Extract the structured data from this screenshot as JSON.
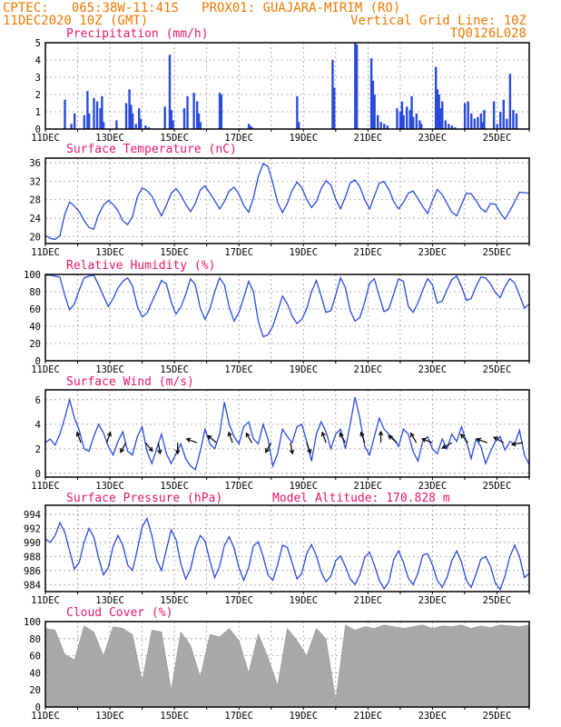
{
  "header": {
    "line1_left": "CPTEC:   065:38W-11:41S   PROX01: GUAJARA-MIRIM (RO)",
    "line2_left": "11DEC2020 10Z (GMT)",
    "line2_right": "Vertical Grid Line: 10Z",
    "line3_right": "TQ0126L028"
  },
  "colors": {
    "header": "#f07800",
    "titles": "#e8186c",
    "series": "#2a4bdc",
    "cloud": "#a8a8a8",
    "wind_arrows": "#000000"
  },
  "x_axis": {
    "tick_labels": [
      "11DEC",
      "13DEC",
      "15DEC",
      "17DEC",
      "19DEC",
      "21DEC",
      "23DEC",
      "25DEC"
    ],
    "day_range": [
      0,
      15
    ]
  },
  "chart_data": [
    {
      "type": "bar",
      "title": "Precipitation (mm/h)",
      "ylim": [
        0,
        5
      ],
      "yticks": [
        "0",
        "1",
        "2",
        "3",
        "4",
        "5"
      ],
      "grid": true,
      "x": [
        0.6,
        0.8,
        0.9,
        1.2,
        1.3,
        1.35,
        1.5,
        1.6,
        1.7,
        1.75,
        1.8,
        2.2,
        2.5,
        2.6,
        2.65,
        2.7,
        2.8,
        2.9,
        2.95,
        3.1,
        3.2,
        3.7,
        3.85,
        3.9,
        3.95,
        4.3,
        4.4,
        4.6,
        4.7,
        4.75,
        4.8,
        5.4,
        5.45,
        6.3,
        6.35,
        6.4,
        7.8,
        7.85,
        8.9,
        8.95,
        9.6,
        9.65,
        10.1,
        10.15,
        10.2,
        10.3,
        10.4,
        10.5,
        10.6,
        10.9,
        11.0,
        11.05,
        11.1,
        11.2,
        11.3,
        11.35,
        11.4,
        11.5,
        11.6,
        11.65,
        12.1,
        12.15,
        12.2,
        12.25,
        12.3,
        12.4,
        12.5,
        12.6,
        12.7,
        13.0,
        13.1,
        13.2,
        13.3,
        13.4,
        13.5,
        13.55,
        13.6,
        13.9,
        14.0,
        14.1,
        14.2,
        14.3,
        14.4,
        14.5,
        14.6
      ],
      "values": [
        1.7,
        0.3,
        0.9,
        0.8,
        2.2,
        0.9,
        1.8,
        1.6,
        1.2,
        1.9,
        0.4,
        0.5,
        1.5,
        2.3,
        1.4,
        0.9,
        0.3,
        1.2,
        0.6,
        0.2,
        0.1,
        1.3,
        4.3,
        1.1,
        0.5,
        1.2,
        1.9,
        2.1,
        1.6,
        0.9,
        0.4,
        2.1,
        2.0,
        0.3,
        0.2,
        0.1,
        1.9,
        0.4,
        4.0,
        2.4,
        5.0,
        4.9,
        4.1,
        2.8,
        2.0,
        0.8,
        0.4,
        0.3,
        0.2,
        1.2,
        1.0,
        1.6,
        0.8,
        1.3,
        1.1,
        1.9,
        0.7,
        0.9,
        0.5,
        0.3,
        3.6,
        2.3,
        2.0,
        1.2,
        1.6,
        0.5,
        0.3,
        0.2,
        0.1,
        1.5,
        1.6,
        0.9,
        0.6,
        0.7,
        0.9,
        0.4,
        1.1,
        1.6,
        0.3,
        1.0,
        1.7,
        0.6,
        3.2,
        1.1,
        0.9
      ]
    },
    {
      "type": "line",
      "title": "Surface Temperature (nC)",
      "ylim": [
        18.5,
        37
      ],
      "yticks": [
        "20",
        "24",
        "28",
        "32",
        "36"
      ],
      "grid": true,
      "x": [
        0,
        0.15,
        0.3,
        0.45,
        0.6,
        0.75,
        0.9,
        1.05,
        1.2,
        1.35,
        1.5,
        1.65,
        1.8,
        1.95,
        2.1,
        2.25,
        2.4,
        2.55,
        2.7,
        2.85,
        3.0,
        3.15,
        3.3,
        3.45,
        3.6,
        3.75,
        3.9,
        4.05,
        4.2,
        4.35,
        4.5,
        4.65,
        4.8,
        4.95,
        5.1,
        5.25,
        5.4,
        5.55,
        5.7,
        5.85,
        6.0,
        6.15,
        6.3,
        6.45,
        6.6,
        6.75,
        6.9,
        7.05,
        7.2,
        7.35,
        7.5,
        7.65,
        7.8,
        7.95,
        8.1,
        8.25,
        8.4,
        8.55,
        8.7,
        8.85,
        9.0,
        9.15,
        9.3,
        9.45,
        9.6,
        9.75,
        9.9,
        10.05,
        10.2,
        10.35,
        10.5,
        10.65,
        10.8,
        10.95,
        11.1,
        11.25,
        11.4,
        11.55,
        11.7,
        11.85,
        12.0,
        12.15,
        12.3,
        12.45,
        12.6,
        12.75,
        12.9,
        13.05,
        13.2,
        13.35,
        13.5,
        13.65,
        13.8,
        13.95,
        14.1,
        14.25,
        14.4,
        14.55,
        14.7,
        14.85,
        15.0
      ],
      "values": [
        20.3,
        19.6,
        19.4,
        20.2,
        24.8,
        27.5,
        26.6,
        25.4,
        23.5,
        22.0,
        21.6,
        24.8,
        26.8,
        27.8,
        27.0,
        25.6,
        23.4,
        22.6,
        24.3,
        28.6,
        30.5,
        30.0,
        28.8,
        26.5,
        24.5,
        26.8,
        29.4,
        30.4,
        29.0,
        27.0,
        25.4,
        27.2,
        30.1,
        31.0,
        29.4,
        27.8,
        26.0,
        27.6,
        29.9,
        30.7,
        29.2,
        26.7,
        25.3,
        28.4,
        33.0,
        35.8,
        35.2,
        31.6,
        27.4,
        25.2,
        27.2,
        30.0,
        31.8,
        30.6,
        28.1,
        26.3,
        27.6,
        30.4,
        32.1,
        31.2,
        28.1,
        26.0,
        28.6,
        31.6,
        32.3,
        30.8,
        28.0,
        26.0,
        28.8,
        31.6,
        31.9,
        30.2,
        27.6,
        26.0,
        27.4,
        29.4,
        29.9,
        28.2,
        26.5,
        25.0,
        27.8,
        30.2,
        29.1,
        27.2,
        25.3,
        24.5,
        26.9,
        29.4,
        29.3,
        27.8,
        26.1,
        25.3,
        27.2,
        27.0,
        25.2,
        23.8,
        25.6,
        27.6,
        29.6,
        29.5,
        29.4
      ]
    },
    {
      "type": "line",
      "title": "Relative Humidity (%)",
      "ylim": [
        0,
        100
      ],
      "yticks": [
        "0",
        "20",
        "40",
        "60",
        "80",
        "100"
      ],
      "grid": true,
      "x": [
        0,
        0.15,
        0.3,
        0.45,
        0.6,
        0.75,
        0.9,
        1.05,
        1.2,
        1.35,
        1.5,
        1.65,
        1.8,
        1.95,
        2.1,
        2.25,
        2.4,
        2.55,
        2.7,
        2.85,
        3.0,
        3.15,
        3.3,
        3.45,
        3.6,
        3.75,
        3.9,
        4.05,
        4.2,
        4.35,
        4.5,
        4.65,
        4.8,
        4.95,
        5.1,
        5.25,
        5.4,
        5.55,
        5.7,
        5.85,
        6.0,
        6.15,
        6.3,
        6.45,
        6.6,
        6.75,
        6.9,
        7.05,
        7.2,
        7.35,
        7.5,
        7.65,
        7.8,
        7.95,
        8.1,
        8.25,
        8.4,
        8.55,
        8.7,
        8.85,
        9.0,
        9.15,
        9.3,
        9.45,
        9.6,
        9.75,
        9.9,
        10.05,
        10.2,
        10.35,
        10.5,
        10.65,
        10.8,
        10.95,
        11.1,
        11.25,
        11.4,
        11.55,
        11.7,
        11.85,
        12.0,
        12.15,
        12.3,
        12.45,
        12.6,
        12.75,
        12.9,
        13.05,
        13.2,
        13.35,
        13.5,
        13.65,
        13.8,
        13.95,
        14.1,
        14.25,
        14.4,
        14.55,
        14.7,
        14.85,
        15.0
      ],
      "values": [
        99,
        99,
        98,
        97,
        76,
        59,
        66,
        82,
        96,
        98,
        99,
        88,
        75,
        63,
        72,
        84,
        92,
        96,
        87,
        63,
        51,
        55,
        68,
        80,
        93,
        89,
        68,
        54,
        62,
        77,
        95,
        88,
        61,
        48,
        60,
        80,
        96,
        88,
        62,
        46,
        56,
        73,
        92,
        80,
        46,
        28,
        30,
        40,
        57,
        75,
        66,
        52,
        43,
        48,
        60,
        80,
        93,
        75,
        56,
        58,
        76,
        96,
        85,
        58,
        46,
        50,
        68,
        90,
        95,
        75,
        57,
        60,
        78,
        95,
        92,
        63,
        56,
        67,
        82,
        95,
        88,
        67,
        69,
        82,
        94,
        98,
        86,
        70,
        72,
        86,
        97,
        96,
        89,
        79,
        73,
        86,
        95,
        90,
        76,
        61,
        66
      ]
    },
    {
      "type": "line",
      "title": "Surface Wind (m/s)",
      "ylim": [
        -0.3,
        6.8
      ],
      "yticks": [
        "0",
        "2",
        "4",
        "6"
      ],
      "grid": true,
      "x": [
        0,
        0.15,
        0.3,
        0.45,
        0.6,
        0.75,
        0.9,
        1.05,
        1.2,
        1.35,
        1.5,
        1.65,
        1.8,
        1.95,
        2.1,
        2.25,
        2.4,
        2.55,
        2.7,
        2.85,
        3.0,
        3.15,
        3.3,
        3.45,
        3.6,
        3.75,
        3.9,
        4.05,
        4.2,
        4.35,
        4.5,
        4.65,
        4.8,
        4.95,
        5.1,
        5.25,
        5.4,
        5.55,
        5.7,
        5.85,
        6.0,
        6.15,
        6.3,
        6.45,
        6.6,
        6.75,
        6.9,
        7.05,
        7.2,
        7.35,
        7.5,
        7.65,
        7.8,
        7.95,
        8.1,
        8.25,
        8.4,
        8.55,
        8.7,
        8.85,
        9.0,
        9.15,
        9.3,
        9.45,
        9.6,
        9.75,
        9.9,
        10.05,
        10.2,
        10.35,
        10.5,
        10.65,
        10.8,
        10.95,
        11.1,
        11.25,
        11.4,
        11.55,
        11.7,
        11.85,
        12.0,
        12.15,
        12.3,
        12.45,
        12.6,
        12.75,
        12.9,
        13.05,
        13.2,
        13.35,
        13.5,
        13.65,
        13.8,
        13.95,
        14.1,
        14.25,
        14.4,
        14.55,
        14.7,
        14.85,
        15.0
      ],
      "values": [
        2.5,
        2.8,
        2.3,
        3.2,
        4.5,
        6.0,
        4.5,
        3.5,
        2.0,
        1.8,
        3.0,
        4.0,
        3.3,
        2.2,
        1.5,
        2.6,
        3.4,
        1.8,
        1.5,
        3.0,
        3.8,
        1.8,
        0.8,
        2.0,
        3.2,
        1.6,
        0.8,
        1.6,
        2.4,
        1.2,
        0.6,
        0.3,
        1.8,
        3.6,
        2.4,
        2.0,
        3.2,
        5.8,
        4.0,
        3.0,
        2.4,
        3.8,
        4.2,
        2.8,
        2.4,
        4.0,
        2.8,
        0.6,
        1.6,
        3.6,
        3.0,
        2.5,
        3.8,
        4.0,
        2.6,
        1.0,
        3.2,
        4.2,
        3.4,
        2.0,
        3.2,
        3.6,
        2.0,
        4.0,
        6.2,
        4.5,
        2.2,
        1.5,
        3.0,
        4.5,
        3.6,
        3.2,
        2.8,
        2.2,
        3.6,
        3.2,
        1.8,
        1.0,
        2.6,
        3.0,
        2.0,
        1.6,
        2.8,
        2.0,
        3.2,
        2.6,
        3.8,
        2.6,
        1.2,
        2.8,
        2.2,
        0.8,
        1.8,
        2.6,
        3.0,
        1.9,
        2.6,
        2.4,
        3.5,
        1.5,
        0.7
      ]
    },
    {
      "type": "line",
      "title": "Surface Pressure (hPa)",
      "subtitle": "Model Altitude: 170.828 m",
      "ylim": [
        983,
        995.3
      ],
      "yticks": [
        "984",
        "986",
        "988",
        "990",
        "992",
        "994"
      ],
      "grid": true,
      "x": [
        0,
        0.15,
        0.3,
        0.45,
        0.6,
        0.75,
        0.9,
        1.05,
        1.2,
        1.35,
        1.5,
        1.65,
        1.8,
        1.95,
        2.1,
        2.25,
        2.4,
        2.55,
        2.7,
        2.85,
        3.0,
        3.15,
        3.3,
        3.45,
        3.6,
        3.75,
        3.9,
        4.05,
        4.2,
        4.35,
        4.5,
        4.65,
        4.8,
        4.95,
        5.1,
        5.25,
        5.4,
        5.55,
        5.7,
        5.85,
        6.0,
        6.15,
        6.3,
        6.45,
        6.6,
        6.75,
        6.9,
        7.05,
        7.2,
        7.35,
        7.5,
        7.65,
        7.8,
        7.95,
        8.1,
        8.25,
        8.4,
        8.55,
        8.7,
        8.85,
        9.0,
        9.15,
        9.3,
        9.45,
        9.6,
        9.75,
        9.9,
        10.05,
        10.2,
        10.35,
        10.5,
        10.65,
        10.8,
        10.95,
        11.1,
        11.25,
        11.4,
        11.55,
        11.7,
        11.85,
        12.0,
        12.15,
        12.3,
        12.45,
        12.6,
        12.75,
        12.9,
        13.05,
        13.2,
        13.35,
        13.5,
        13.65,
        13.8,
        13.95,
        14.1,
        14.25,
        14.4,
        14.55,
        14.7,
        14.85,
        15.0
      ],
      "values": [
        990.5,
        990.0,
        991.0,
        992.8,
        991.5,
        988.8,
        986.2,
        987.2,
        990.0,
        992.0,
        990.8,
        987.8,
        985.4,
        986.4,
        989.4,
        991.0,
        989.6,
        986.8,
        986.0,
        989.0,
        992.2,
        993.4,
        991.0,
        987.5,
        986.0,
        989.0,
        991.8,
        990.4,
        987.0,
        984.8,
        986.2,
        989.2,
        991.0,
        990.2,
        987.4,
        985.0,
        986.6,
        989.6,
        990.8,
        989.2,
        986.4,
        984.6,
        986.4,
        989.5,
        990.1,
        988.0,
        985.4,
        984.6,
        986.8,
        989.6,
        989.3,
        987.1,
        984.8,
        985.6,
        988.4,
        989.7,
        988.1,
        985.8,
        984.4,
        985.2,
        987.4,
        988.1,
        986.6,
        984.8,
        984.0,
        985.4,
        987.9,
        988.6,
        986.8,
        984.6,
        983.4,
        984.4,
        987.6,
        988.8,
        987.2,
        984.9,
        984.0,
        985.6,
        988.2,
        988.4,
        986.8,
        984.6,
        983.6,
        985.0,
        987.4,
        988.8,
        987.2,
        984.6,
        983.6,
        985.5,
        987.6,
        988.0,
        986.6,
        984.2,
        983.3,
        985.2,
        988.0,
        989.6,
        988.0,
        985.0,
        985.6
      ]
    },
    {
      "type": "area",
      "title": "Cloud Cover (%)",
      "ylim": [
        0,
        100
      ],
      "yticks": [
        "0",
        "20",
        "40",
        "60",
        "80",
        "100"
      ],
      "grid": true,
      "x": [
        0,
        0.3,
        0.6,
        0.9,
        1.2,
        1.5,
        1.8,
        2.1,
        2.4,
        2.7,
        3.0,
        3.3,
        3.6,
        3.9,
        4.2,
        4.5,
        4.8,
        5.1,
        5.4,
        5.7,
        6.0,
        6.3,
        6.6,
        6.9,
        7.2,
        7.5,
        7.8,
        8.1,
        8.4,
        8.7,
        9.0,
        9.3,
        9.6,
        9.9,
        10.2,
        10.5,
        10.8,
        11.1,
        11.4,
        11.7,
        12.0,
        12.3,
        12.6,
        12.9,
        13.2,
        13.5,
        13.8,
        14.1,
        14.4,
        14.7,
        15.0
      ],
      "values": [
        92,
        90,
        62,
        55,
        95,
        88,
        60,
        94,
        92,
        85,
        30,
        90,
        88,
        20,
        88,
        72,
        35,
        85,
        82,
        92,
        78,
        40,
        86,
        58,
        25,
        92,
        78,
        60,
        92,
        80,
        8,
        96,
        90,
        94,
        92,
        96,
        94,
        92,
        94,
        96,
        92,
        95,
        94,
        96,
        92,
        95,
        93,
        96,
        95,
        94,
        96
      ]
    }
  ],
  "wind_arrows": {
    "x": [
      1.1,
      1.9,
      2.5,
      3.1,
      3.5,
      4.1,
      4.7,
      5.3,
      5.8,
      6.4,
      7.0,
      7.6,
      8.1,
      8.7,
      9.3,
      9.9,
      10.4,
      10.9,
      11.5,
      12.0,
      12.6,
      13.1,
      13.7,
      14.2,
      14.8
    ],
    "direction_deg": [
      200,
      160,
      330,
      40,
      10,
      0,
      250,
      230,
      200,
      210,
      330,
      10,
      20,
      200,
      210,
      200,
      180,
      230,
      210,
      250,
      300,
      220,
      250,
      240,
      280
    ]
  }
}
